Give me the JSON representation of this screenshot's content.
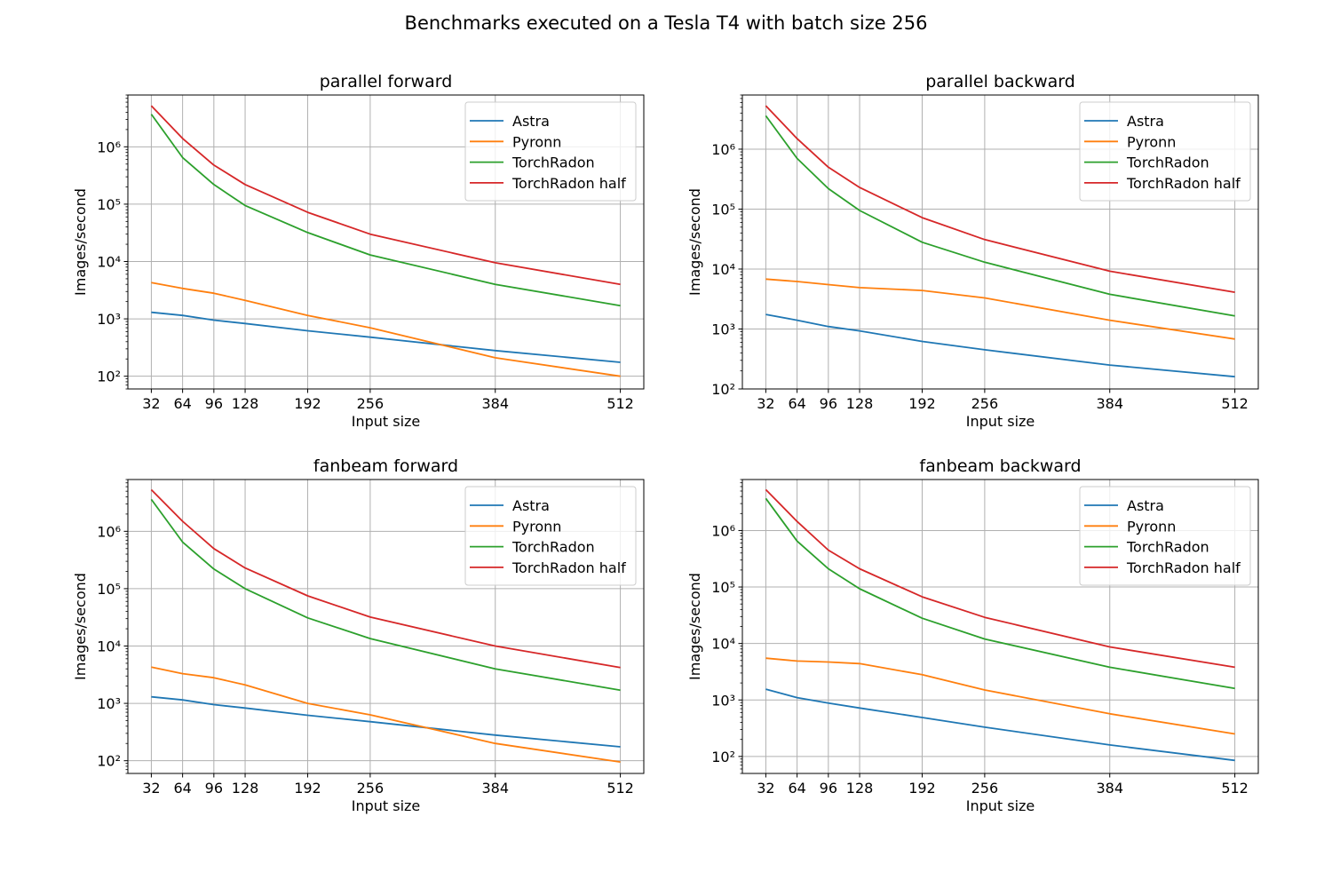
{
  "suptitle": "Benchmarks executed on a Tesla T4 with batch size 256",
  "colors": {
    "Astra": "#1f77b4",
    "Pyronn": "#ff7f0e",
    "TorchRadon": "#2ca02c",
    "TorchRadon half": "#d62728",
    "grid": "#b0b0b0"
  },
  "chart_data": [
    {
      "type": "line",
      "title": "parallel forward",
      "xlabel": "Input size",
      "ylabel": "Images/second",
      "yscale": "log",
      "grid": true,
      "legend": "top-right",
      "xlim": [
        8,
        536
      ],
      "ylim": [
        60,
        8000000
      ],
      "x": [
        32,
        64,
        96,
        128,
        192,
        256,
        384,
        512
      ],
      "xticks": [
        32,
        64,
        96,
        128,
        192,
        256,
        384,
        512
      ],
      "yticks": [
        100,
        1000,
        10000,
        100000,
        1000000
      ],
      "series": [
        {
          "name": "Astra",
          "values": [
            1300,
            1150,
            950,
            830,
            620,
            480,
            280,
            175
          ]
        },
        {
          "name": "Pyronn",
          "values": [
            4300,
            3400,
            2800,
            2100,
            1150,
            700,
            210,
            100
          ]
        },
        {
          "name": "TorchRadon",
          "values": [
            3700000,
            650000,
            220000,
            95000,
            32000,
            13000,
            4000,
            1700
          ]
        },
        {
          "name": "TorchRadon half",
          "values": [
            5200000,
            1400000,
            480000,
            220000,
            72000,
            30000,
            9500,
            4000
          ]
        }
      ]
    },
    {
      "type": "line",
      "title": "parallel backward",
      "xlabel": "Input size",
      "ylabel": "Images/second",
      "yscale": "log",
      "grid": true,
      "legend": "top-right",
      "xlim": [
        8,
        536
      ],
      "ylim": [
        100,
        8000000
      ],
      "x": [
        32,
        64,
        96,
        128,
        192,
        256,
        384,
        512
      ],
      "xticks": [
        32,
        64,
        96,
        128,
        192,
        256,
        384,
        512
      ],
      "yticks": [
        100,
        1000,
        10000,
        100000,
        1000000
      ],
      "series": [
        {
          "name": "Astra",
          "values": [
            1750,
            1400,
            1100,
            930,
            620,
            450,
            250,
            160
          ]
        },
        {
          "name": "Pyronn",
          "values": [
            6800,
            6200,
            5500,
            4900,
            4400,
            3300,
            1400,
            680
          ]
        },
        {
          "name": "TorchRadon",
          "values": [
            3600000,
            700000,
            220000,
            95000,
            28000,
            13000,
            3800,
            1650
          ]
        },
        {
          "name": "TorchRadon half",
          "values": [
            5300000,
            1500000,
            500000,
            230000,
            72000,
            31000,
            9200,
            4100
          ]
        }
      ]
    },
    {
      "type": "line",
      "title": "fanbeam forward",
      "xlabel": "Input size",
      "ylabel": "Images/second",
      "yscale": "log",
      "grid": true,
      "legend": "top-right",
      "xlim": [
        8,
        536
      ],
      "ylim": [
        60,
        8000000
      ],
      "x": [
        32,
        64,
        96,
        128,
        192,
        256,
        384,
        512
      ],
      "xticks": [
        32,
        64,
        96,
        128,
        192,
        256,
        384,
        512
      ],
      "yticks": [
        100,
        1000,
        10000,
        100000,
        1000000
      ],
      "series": [
        {
          "name": "Astra",
          "values": [
            1300,
            1150,
            950,
            830,
            620,
            480,
            280,
            175
          ]
        },
        {
          "name": "Pyronn",
          "values": [
            4300,
            3300,
            2800,
            2100,
            1000,
            630,
            200,
            95
          ]
        },
        {
          "name": "TorchRadon",
          "values": [
            3600000,
            650000,
            220000,
            100000,
            31000,
            13500,
            4000,
            1700
          ]
        },
        {
          "name": "TorchRadon half",
          "values": [
            5300000,
            1500000,
            500000,
            230000,
            75000,
            32000,
            10000,
            4200
          ]
        }
      ]
    },
    {
      "type": "line",
      "title": "fanbeam backward",
      "xlabel": "Input size",
      "ylabel": "Images/second",
      "yscale": "log",
      "grid": true,
      "legend": "top-right",
      "xlim": [
        8,
        536
      ],
      "ylim": [
        50,
        8000000
      ],
      "x": [
        32,
        64,
        96,
        128,
        192,
        256,
        384,
        512
      ],
      "xticks": [
        32,
        64,
        96,
        128,
        192,
        256,
        384,
        512
      ],
      "yticks": [
        100,
        1000,
        10000,
        100000,
        1000000
      ],
      "series": [
        {
          "name": "Astra",
          "values": [
            1550,
            1100,
            880,
            720,
            490,
            330,
            160,
            85
          ]
        },
        {
          "name": "Pyronn",
          "values": [
            5500,
            4900,
            4700,
            4400,
            2800,
            1500,
            570,
            250
          ]
        },
        {
          "name": "TorchRadon",
          "values": [
            3700000,
            650000,
            210000,
            93000,
            28000,
            12000,
            3800,
            1600
          ]
        },
        {
          "name": "TorchRadon half",
          "values": [
            5300000,
            1450000,
            450000,
            210000,
            67000,
            29000,
            8700,
            3800
          ]
        }
      ]
    }
  ]
}
